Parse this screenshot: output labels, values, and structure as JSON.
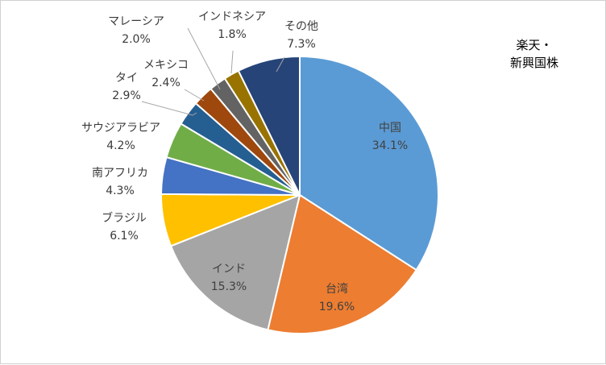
{
  "chart_data": {
    "type": "pie",
    "title_lines": [
      "楽天・",
      "新興国株"
    ],
    "slices": [
      {
        "label": "中国",
        "value": 34.1,
        "value_text": "34.1%",
        "color": "#5B9BD5"
      },
      {
        "label": "台湾",
        "value": 19.6,
        "value_text": "19.6%",
        "color": "#ED7D31"
      },
      {
        "label": "インド",
        "value": 15.3,
        "value_text": "15.3%",
        "color": "#A5A5A5"
      },
      {
        "label": "ブラジル",
        "value": 6.1,
        "value_text": "6.1%",
        "color": "#FFC000"
      },
      {
        "label": "南アフリカ",
        "value": 4.3,
        "value_text": "4.3%",
        "color": "#4472C4"
      },
      {
        "label": "サウジアラビア",
        "value": 4.2,
        "value_text": "4.2%",
        "color": "#70AD47"
      },
      {
        "label": "タイ",
        "value": 2.9,
        "value_text": "2.9%",
        "color": "#255E91"
      },
      {
        "label": "メキシコ",
        "value": 2.4,
        "value_text": "2.4%",
        "color": "#9E480E"
      },
      {
        "label": "マレーシア",
        "value": 2.0,
        "value_text": "2.0%",
        "color": "#636363"
      },
      {
        "label": "インドネシア",
        "value": 1.8,
        "value_text": "1.8%",
        "color": "#997300"
      },
      {
        "label": "その他",
        "value": 7.3,
        "value_text": "7.3%",
        "color": "#264478"
      }
    ]
  }
}
